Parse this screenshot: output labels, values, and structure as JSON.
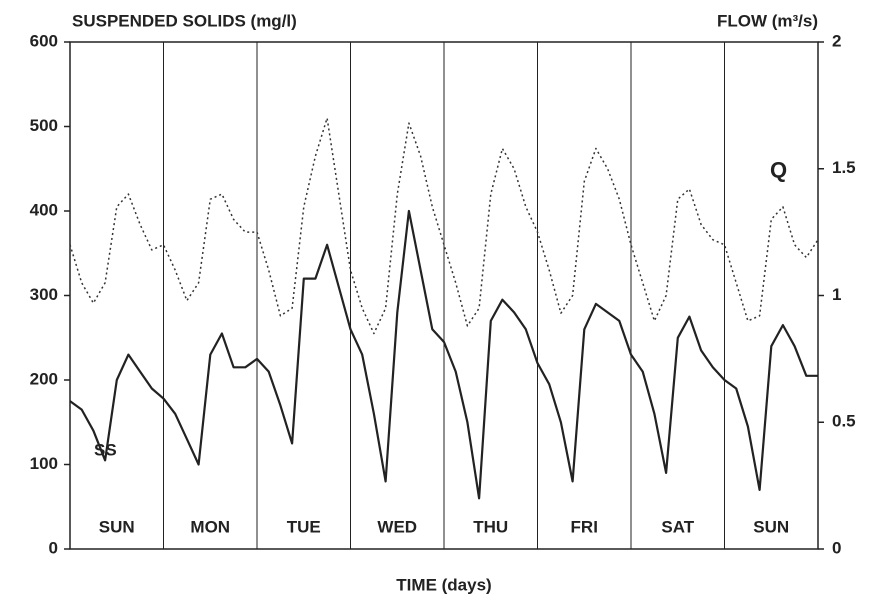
{
  "chart_data": {
    "type": "line",
    "y_label": "SUSPENDED SOLIDS (mg/l)",
    "y2_label": "FLOW (m³/s)",
    "x_label": "TIME (days)",
    "categories": [
      "SUN",
      "MON",
      "TUE",
      "WED",
      "THU",
      "FRI",
      "SAT",
      "SUN"
    ],
    "xlim": [
      0,
      8
    ],
    "ylim": [
      0,
      600
    ],
    "yticks": [
      0,
      100,
      200,
      300,
      400,
      500,
      600
    ],
    "y2lim": [
      0,
      2
    ],
    "y2ticks": [
      0,
      0.5,
      1,
      1.5,
      2
    ],
    "x": [
      0,
      0.125,
      0.25,
      0.375,
      0.5,
      0.625,
      0.75,
      0.875,
      1,
      1.125,
      1.25,
      1.375,
      1.5,
      1.625,
      1.75,
      1.875,
      2,
      2.125,
      2.25,
      2.375,
      2.5,
      2.625,
      2.75,
      2.875,
      3,
      3.125,
      3.25,
      3.375,
      3.5,
      3.625,
      3.75,
      3.875,
      4,
      4.125,
      4.25,
      4.375,
      4.5,
      4.625,
      4.75,
      4.875,
      5,
      5.125,
      5.25,
      5.375,
      5.5,
      5.625,
      5.75,
      5.875,
      6,
      6.125,
      6.25,
      6.375,
      6.5,
      6.625,
      6.75,
      6.875,
      7,
      7.125,
      7.25,
      7.375,
      7.5,
      7.625,
      7.75,
      7.875,
      8
    ],
    "series": [
      {
        "name": "SS",
        "color": "#222222",
        "style": "solid",
        "values": [
          175,
          165,
          140,
          105,
          200,
          230,
          210,
          190,
          178,
          160,
          130,
          100,
          230,
          255,
          215,
          215,
          225,
          210,
          170,
          125,
          320,
          320,
          360,
          310,
          260,
          230,
          160,
          80,
          280,
          400,
          330,
          260,
          245,
          210,
          150,
          60,
          270,
          295,
          280,
          260,
          220,
          195,
          150,
          80,
          260,
          290,
          280,
          270,
          230,
          210,
          160,
          90,
          250,
          275,
          235,
          215,
          200,
          190,
          145,
          70,
          240,
          265,
          240,
          205,
          205
        ]
      },
      {
        "name": "Q",
        "color": "#333333",
        "style": "dotted",
        "axis": "y2",
        "values": [
          1.2,
          1.05,
          0.97,
          1.05,
          1.35,
          1.4,
          1.28,
          1.18,
          1.2,
          1.1,
          0.98,
          1.05,
          1.38,
          1.4,
          1.3,
          1.25,
          1.25,
          1.1,
          0.92,
          0.95,
          1.35,
          1.55,
          1.7,
          1.4,
          1.1,
          0.95,
          0.85,
          0.95,
          1.4,
          1.68,
          1.55,
          1.35,
          1.2,
          1.05,
          0.88,
          0.95,
          1.4,
          1.58,
          1.5,
          1.35,
          1.25,
          1.1,
          0.93,
          1.0,
          1.45,
          1.58,
          1.5,
          1.38,
          1.2,
          1.05,
          0.9,
          1.0,
          1.38,
          1.42,
          1.28,
          1.22,
          1.2,
          1.05,
          0.9,
          0.92,
          1.3,
          1.35,
          1.2,
          1.15,
          1.22
        ]
      }
    ]
  }
}
